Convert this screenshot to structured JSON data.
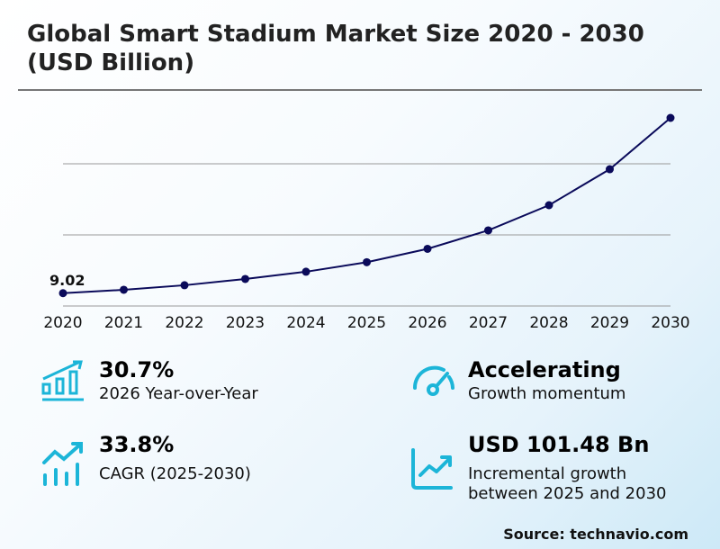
{
  "title_line1": "Global Smart Stadium Market Size 2020 - 2030",
  "title_line2": "(USD Billion)",
  "colors": {
    "line": "#0a0a5a",
    "gridline": "#999999",
    "icon": "#1cb5d8"
  },
  "chart_data": {
    "type": "line",
    "title": "Global Smart Stadium Market Size 2020 - 2030 (USD Billion)",
    "categories": [
      "2020",
      "2021",
      "2022",
      "2023",
      "2024",
      "2025",
      "2026",
      "2027",
      "2028",
      "2029",
      "2030"
    ],
    "values": [
      9.02,
      11.4,
      14.6,
      19.0,
      24.1,
      30.8,
      40.2,
      53.2,
      70.9,
      96.2,
      132.3
    ],
    "data_labels": [
      {
        "category": "2020",
        "text": "9.02"
      }
    ],
    "ylim": [
      0,
      132.3
    ],
    "gridlines": [
      0,
      50,
      100
    ],
    "grid": true,
    "y_tick_labels_shown": false
  },
  "stats": [
    {
      "icon": "bar-chart-up-icon",
      "value": "30.7%",
      "label": "2026 Year-over-Year"
    },
    {
      "icon": "gauge-icon",
      "value": "Accelerating",
      "label": "Growth momentum"
    },
    {
      "icon": "trend-bars-icon",
      "value": "33.8%",
      "label": "CAGR (2025-2030)"
    },
    {
      "icon": "line-chart-up-icon",
      "value": "USD 101.48 Bn",
      "label_line1": "Incremental growth",
      "label_line2": "between 2025 and 2030"
    }
  ],
  "source": "Source: technavio.com"
}
